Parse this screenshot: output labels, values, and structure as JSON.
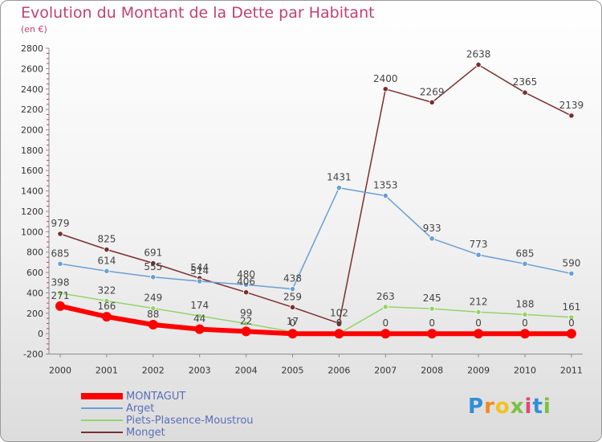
{
  "title": "Evolution du Montant de la Dette par Habitant",
  "unit_label": "(en €)",
  "brand": {
    "letters": [
      "P",
      "r",
      "o",
      "x",
      "i",
      "t",
      "i"
    ],
    "colors": [
      "#2f8fd8",
      "#f28a1e",
      "#f2c21e",
      "#7bc043",
      "#d84a7a",
      "#2f8fd8",
      "#7bc043"
    ]
  },
  "chart_data": {
    "type": "line",
    "categories": [
      "2000",
      "2001",
      "2002",
      "2003",
      "2004",
      "2005",
      "2006",
      "2007",
      "2008",
      "2009",
      "2010",
      "2011"
    ],
    "ylim": [
      -200,
      2800
    ],
    "yticks": [
      -200,
      0,
      200,
      400,
      600,
      800,
      1000,
      1200,
      1400,
      1600,
      1800,
      2000,
      2200,
      2400,
      2600,
      2800
    ],
    "grid": false,
    "legend_position": "bottom-left",
    "series": [
      {
        "name": "MONTAGUT",
        "color": "#ff0000",
        "values": [
          271,
          166,
          88,
          44,
          22,
          0,
          0,
          0,
          0,
          0,
          0,
          0
        ],
        "labels": [
          "271",
          "166",
          "88",
          "44",
          "22",
          "0",
          "0",
          "0",
          "0",
          "0",
          "0",
          "0"
        ]
      },
      {
        "name": "Arget",
        "color": "#6a9fd4",
        "values": [
          685,
          614,
          555,
          514,
          480,
          438,
          1431,
          1353,
          933,
          773,
          685,
          590
        ],
        "labels": [
          "685",
          "614",
          "555",
          "514",
          "480",
          "438",
          "1431",
          "1353",
          "933",
          "773",
          "685",
          "590"
        ]
      },
      {
        "name": "Piets-Plasence-Moustrou",
        "color": "#96d46a",
        "values": [
          398,
          322,
          249,
          174,
          99,
          17,
          0,
          263,
          245,
          212,
          188,
          161
        ],
        "labels": [
          "398",
          "322",
          "249",
          "174",
          "99",
          "17",
          "0",
          "263",
          "245",
          "212",
          "188",
          "161"
        ]
      },
      {
        "name": "Monget",
        "color": "#7a2e2e",
        "values": [
          979,
          825,
          691,
          544,
          406,
          259,
          102,
          2400,
          2269,
          2638,
          2365,
          2139
        ],
        "labels": [
          "979",
          "825",
          "691",
          "544",
          "406",
          "259",
          "102",
          "2400",
          "2269",
          "2638",
          "2365",
          "2139"
        ]
      }
    ]
  }
}
